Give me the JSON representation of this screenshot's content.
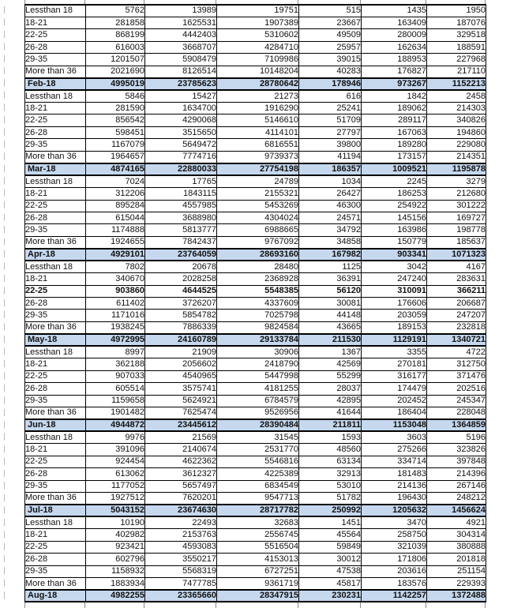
{
  "page": {
    "background_color": "#ffffff",
    "grid_border_color": "#000000",
    "month_row_fill_color": "#c5d8ee"
  },
  "table": {
    "visible_columns_count": 7,
    "rows": [
      {
        "type": "age",
        "label": "Lessthan 18",
        "values": [
          "5762",
          "13989",
          "19751",
          "515",
          "1435",
          "1950"
        ]
      },
      {
        "type": "age",
        "label": "18-21",
        "values": [
          "281858",
          "1625531",
          "1907389",
          "23667",
          "163409",
          "187076"
        ]
      },
      {
        "type": "age",
        "label": "22-25",
        "values": [
          "868199",
          "4442403",
          "5310602",
          "49509",
          "280009",
          "329518"
        ]
      },
      {
        "type": "age",
        "label": "26-28",
        "values": [
          "616003",
          "3668707",
          "4284710",
          "25957",
          "162634",
          "188591"
        ]
      },
      {
        "type": "age",
        "label": "29-35",
        "values": [
          "1201507",
          "5908479",
          "7109986",
          "39015",
          "188953",
          "227968"
        ]
      },
      {
        "type": "age",
        "label": "More than 36",
        "values": [
          "2021690",
          "8126514",
          "10148204",
          "40283",
          "176827",
          "217110"
        ]
      },
      {
        "type": "month",
        "label": "Feb-18",
        "values": [
          "4995019",
          "23785623",
          "28780642",
          "178946",
          "973267",
          "1152213"
        ]
      },
      {
        "type": "age",
        "label": "Lessthan 18",
        "values": [
          "5846",
          "15427",
          "21273",
          "616",
          "1842",
          "2458"
        ]
      },
      {
        "type": "age",
        "label": "18-21",
        "values": [
          "281590",
          "1634700",
          "1916290",
          "25241",
          "189062",
          "214303"
        ]
      },
      {
        "type": "age",
        "label": "22-25",
        "values": [
          "856542",
          "4290068",
          "5146610",
          "51709",
          "289117",
          "340826"
        ]
      },
      {
        "type": "age",
        "label": "26-28",
        "values": [
          "598451",
          "3515650",
          "4114101",
          "27797",
          "167063",
          "194860"
        ]
      },
      {
        "type": "age",
        "label": "29-35",
        "values": [
          "1167079",
          "5649472",
          "6816551",
          "39800",
          "189280",
          "229080"
        ]
      },
      {
        "type": "age",
        "label": "More than 36",
        "values": [
          "1964657",
          "7774716",
          "9739373",
          "41194",
          "173157",
          "214351"
        ]
      },
      {
        "type": "month",
        "label": "Mar-18",
        "values": [
          "4874165",
          "22880033",
          "27754198",
          "186357",
          "1009521",
          "1195878"
        ]
      },
      {
        "type": "age",
        "label": "Lessthan 18",
        "values": [
          "7024",
          "17765",
          "24789",
          "1034",
          "2245",
          "3279"
        ]
      },
      {
        "type": "age",
        "label": "18-21",
        "values": [
          "312206",
          "1843115",
          "2155321",
          "26427",
          "186253",
          "212680"
        ]
      },
      {
        "type": "age",
        "label": "22-25",
        "values": [
          "895284",
          "4557985",
          "5453269",
          "46300",
          "254922",
          "301222"
        ]
      },
      {
        "type": "age",
        "label": "26-28",
        "values": [
          "615044",
          "3688980",
          "4304024",
          "24571",
          "145156",
          "169727"
        ]
      },
      {
        "type": "age",
        "label": "29-35",
        "values": [
          "1174888",
          "5813777",
          "6988665",
          "34792",
          "163986",
          "198778"
        ]
      },
      {
        "type": "age",
        "label": "More than 36",
        "values": [
          "1924655",
          "7842437",
          "9767092",
          "34858",
          "150779",
          "185637"
        ]
      },
      {
        "type": "month",
        "label": "Apr-18",
        "values": [
          "4929101",
          "23764059",
          "28693160",
          "167982",
          "903341",
          "1071323"
        ]
      },
      {
        "type": "age",
        "label": "Lessthan 18",
        "values": [
          "7802",
          "20678",
          "28480",
          "1125",
          "3042",
          "4167"
        ]
      },
      {
        "type": "age",
        "label": "18-21",
        "values": [
          "340670",
          "2028258",
          "2368928",
          "36391",
          "247240",
          "283631"
        ]
      },
      {
        "type": "age",
        "label": "22-25",
        "bold": true,
        "values": [
          "903860",
          "4644525",
          "5548385",
          "56120",
          "310091",
          "366211"
        ]
      },
      {
        "type": "age",
        "label": "26-28",
        "values": [
          "611402",
          "3726207",
          "4337609",
          "30081",
          "176606",
          "206687"
        ]
      },
      {
        "type": "age",
        "label": "29-35",
        "values": [
          "1171016",
          "5854782",
          "7025798",
          "44148",
          "203059",
          "247207"
        ]
      },
      {
        "type": "age",
        "label": "More than 36",
        "values": [
          "1938245",
          "7886339",
          "9824584",
          "43665",
          "189153",
          "232818"
        ]
      },
      {
        "type": "month",
        "label": "May-18",
        "values": [
          "4972995",
          "24160789",
          "29133784",
          "211530",
          "1129191",
          "1340721"
        ]
      },
      {
        "type": "age",
        "label": "Lessthan 18",
        "values": [
          "8997",
          "21909",
          "30906",
          "1367",
          "3355",
          "4722"
        ]
      },
      {
        "type": "age",
        "label": "18-21",
        "values": [
          "362188",
          "2056602",
          "2418790",
          "42569",
          "270181",
          "312750"
        ]
      },
      {
        "type": "age",
        "label": "22-25",
        "values": [
          "907033",
          "4540965",
          "5447998",
          "55299",
          "316177",
          "371476"
        ]
      },
      {
        "type": "age",
        "label": "26-28",
        "values": [
          "605514",
          "3575741",
          "4181255",
          "28037",
          "174479",
          "202516"
        ]
      },
      {
        "type": "age",
        "label": "29-35",
        "values": [
          "1159658",
          "5624921",
          "6784579",
          "42895",
          "202452",
          "245347"
        ]
      },
      {
        "type": "age",
        "label": "More than 36",
        "values": [
          "1901482",
          "7625474",
          "9526956",
          "41644",
          "186404",
          "228048"
        ]
      },
      {
        "type": "month",
        "label": "Jun-18",
        "values": [
          "4944872",
          "23445612",
          "28390484",
          "211811",
          "1153048",
          "1364859"
        ]
      },
      {
        "type": "age",
        "label": "Lessthan 18",
        "values": [
          "9976",
          "21569",
          "31545",
          "1593",
          "3603",
          "5196"
        ]
      },
      {
        "type": "age",
        "label": "18-21",
        "values": [
          "391096",
          "2140674",
          "2531770",
          "48560",
          "275266",
          "323826"
        ]
      },
      {
        "type": "age",
        "label": "22-25",
        "values": [
          "924454",
          "4622362",
          "5546816",
          "63134",
          "334714",
          "397848"
        ]
      },
      {
        "type": "age",
        "label": "26-28",
        "values": [
          "613062",
          "3612327",
          "4225389",
          "32913",
          "181483",
          "214396"
        ]
      },
      {
        "type": "age",
        "label": "29-35",
        "values": [
          "1177052",
          "5657497",
          "6834549",
          "53010",
          "214136",
          "267146"
        ]
      },
      {
        "type": "age",
        "label": "More than 36",
        "values": [
          "1927512",
          "7620201",
          "9547713",
          "51782",
          "196430",
          "248212"
        ]
      },
      {
        "type": "month",
        "label": "Jul-18",
        "values": [
          "5043152",
          "23674630",
          "28717782",
          "250992",
          "1205632",
          "1456624"
        ]
      },
      {
        "type": "age",
        "label": "Lessthan 18",
        "values": [
          "10190",
          "22493",
          "32683",
          "1451",
          "3470",
          "4921"
        ]
      },
      {
        "type": "age",
        "label": "18-21",
        "values": [
          "402982",
          "2153763",
          "2556745",
          "45564",
          "258750",
          "304314"
        ]
      },
      {
        "type": "age",
        "label": "22-25",
        "values": [
          "923421",
          "4593083",
          "5516504",
          "59849",
          "321039",
          "380888"
        ]
      },
      {
        "type": "age",
        "label": "26-28",
        "values": [
          "602796",
          "3550217",
          "4153013",
          "30012",
          "171806",
          "201818"
        ]
      },
      {
        "type": "age",
        "label": "29-35",
        "values": [
          "1158932",
          "5568319",
          "6727251",
          "47538",
          "203616",
          "251154"
        ]
      },
      {
        "type": "age",
        "label": "More than 36",
        "values": [
          "1883934",
          "7477785",
          "9361719",
          "45817",
          "183576",
          "229393"
        ]
      },
      {
        "type": "month",
        "label": "Aug-18",
        "values": [
          "4982255",
          "23365660",
          "28347915",
          "230231",
          "1142257",
          "1372488"
        ]
      }
    ]
  }
}
